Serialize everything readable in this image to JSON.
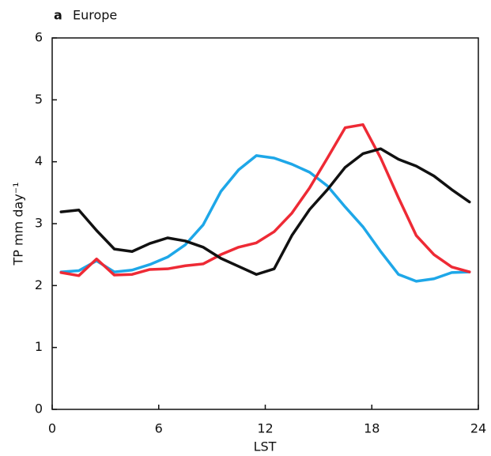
{
  "chart_data": {
    "type": "line",
    "panel_label": "a",
    "title": "Europe",
    "xlabel": "LST",
    "ylabel": "TP mm day⁻¹",
    "x": [
      0.5,
      1.5,
      2.5,
      3.5,
      4.5,
      5.5,
      6.5,
      7.5,
      8.5,
      9.5,
      10.5,
      11.5,
      12.5,
      13.5,
      14.5,
      15.5,
      16.5,
      17.5,
      18.5,
      19.5,
      20.5,
      21.5,
      22.5,
      23.5
    ],
    "series": [
      {
        "color": "#1ea7e8",
        "values": [
          2.22,
          2.24,
          2.4,
          2.22,
          2.25,
          2.34,
          2.46,
          2.66,
          2.98,
          3.52,
          3.87,
          4.1,
          4.06,
          3.96,
          3.83,
          3.61,
          3.27,
          2.95,
          2.55,
          2.18,
          2.07,
          2.11,
          2.21,
          2.22
        ]
      },
      {
        "color": "#ee2a35",
        "values": [
          2.21,
          2.16,
          2.43,
          2.17,
          2.18,
          2.26,
          2.27,
          2.32,
          2.35,
          2.5,
          2.62,
          2.69,
          2.87,
          3.17,
          3.58,
          4.06,
          4.55,
          4.6,
          4.06,
          3.42,
          2.81,
          2.5,
          2.3,
          2.22
        ]
      },
      {
        "color": "#111111",
        "values": [
          3.19,
          3.22,
          2.89,
          2.59,
          2.55,
          2.68,
          2.77,
          2.72,
          2.62,
          2.44,
          2.31,
          2.18,
          2.27,
          2.81,
          3.23,
          3.55,
          3.91,
          4.13,
          4.21,
          4.04,
          3.93,
          3.77,
          3.55,
          3.35
        ]
      }
    ],
    "xlim": [
      0,
      24
    ],
    "xticks": [
      0,
      6,
      12,
      18,
      24
    ],
    "ylim": [
      0,
      6
    ],
    "yticks": [
      0,
      1,
      2,
      3,
      4,
      5,
      6
    ]
  }
}
